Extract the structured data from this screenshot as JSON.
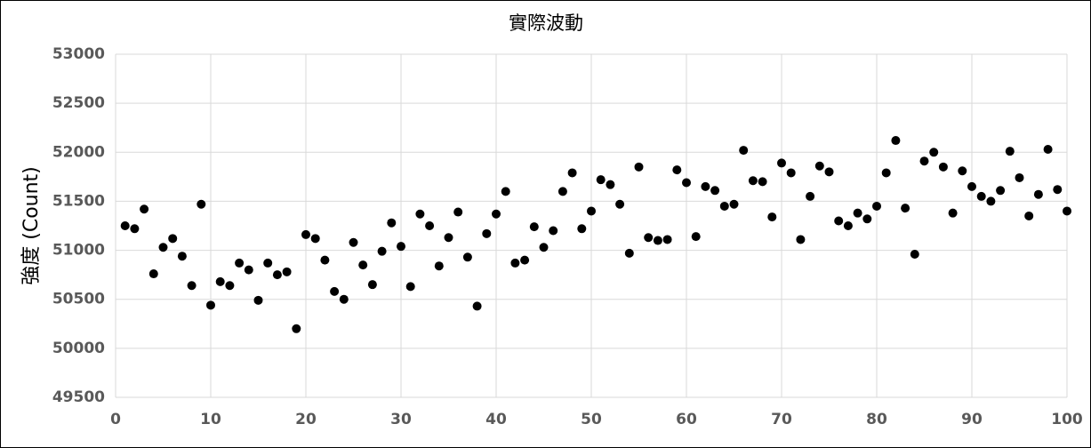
{
  "chart_data": {
    "type": "scatter",
    "title": "實際波動",
    "y_label": "強度 (Count)",
    "x": [
      1,
      2,
      3,
      4,
      5,
      6,
      7,
      8,
      9,
      10,
      11,
      12,
      13,
      14,
      15,
      16,
      17,
      18,
      19,
      20,
      21,
      22,
      23,
      24,
      25,
      26,
      27,
      28,
      29,
      30,
      31,
      32,
      33,
      34,
      35,
      36,
      37,
      38,
      39,
      40,
      41,
      42,
      43,
      44,
      45,
      46,
      47,
      48,
      49,
      50,
      51,
      52,
      53,
      54,
      55,
      56,
      57,
      58,
      59,
      60,
      61,
      62,
      63,
      64,
      65,
      66,
      67,
      68,
      69,
      70,
      71,
      72,
      73,
      74,
      75,
      76,
      77,
      78,
      79,
      80,
      81,
      82,
      83,
      84,
      85,
      86,
      87,
      88,
      89,
      90,
      91,
      92,
      93,
      94,
      95,
      96,
      97,
      98,
      99,
      100
    ],
    "values": [
      51250,
      51220,
      51420,
      50760,
      51030,
      51120,
      50940,
      50640,
      51470,
      50440,
      50680,
      50640,
      50870,
      50800,
      50490,
      50870,
      50750,
      50780,
      50200,
      51160,
      51120,
      50900,
      50580,
      50500,
      51080,
      50850,
      50650,
      50990,
      51280,
      51040,
      50630,
      51370,
      51250,
      50840,
      51130,
      51390,
      50930,
      50430,
      51170,
      51370,
      51600,
      50870,
      50900,
      51240,
      51030,
      51200,
      51600,
      51790,
      51220,
      51400,
      51720,
      51670,
      51470,
      50970,
      51850,
      51130,
      51100,
      51110,
      51820,
      51690,
      51140,
      51650,
      51610,
      51450,
      51470,
      52020,
      51710,
      51700,
      51340,
      51890,
      51790,
      51110,
      51550,
      51860,
      51800,
      51300,
      51250,
      51380,
      51320,
      51450,
      51790,
      52120,
      51430,
      50960,
      51910,
      52000,
      51850,
      51380,
      51810,
      51650,
      51550,
      51500,
      51610,
      52010,
      51740,
      51350,
      51570,
      52030,
      51620,
      51400
    ],
    "color": "#000000",
    "xlim": [
      0,
      100
    ],
    "xticks": [
      0,
      10,
      20,
      30,
      40,
      50,
      60,
      70,
      80,
      90,
      100
    ],
    "ylim": [
      49500,
      53000
    ],
    "yticks": [
      49500,
      50000,
      50500,
      51000,
      51500,
      52000,
      52500,
      53000
    ],
    "grid": true
  }
}
